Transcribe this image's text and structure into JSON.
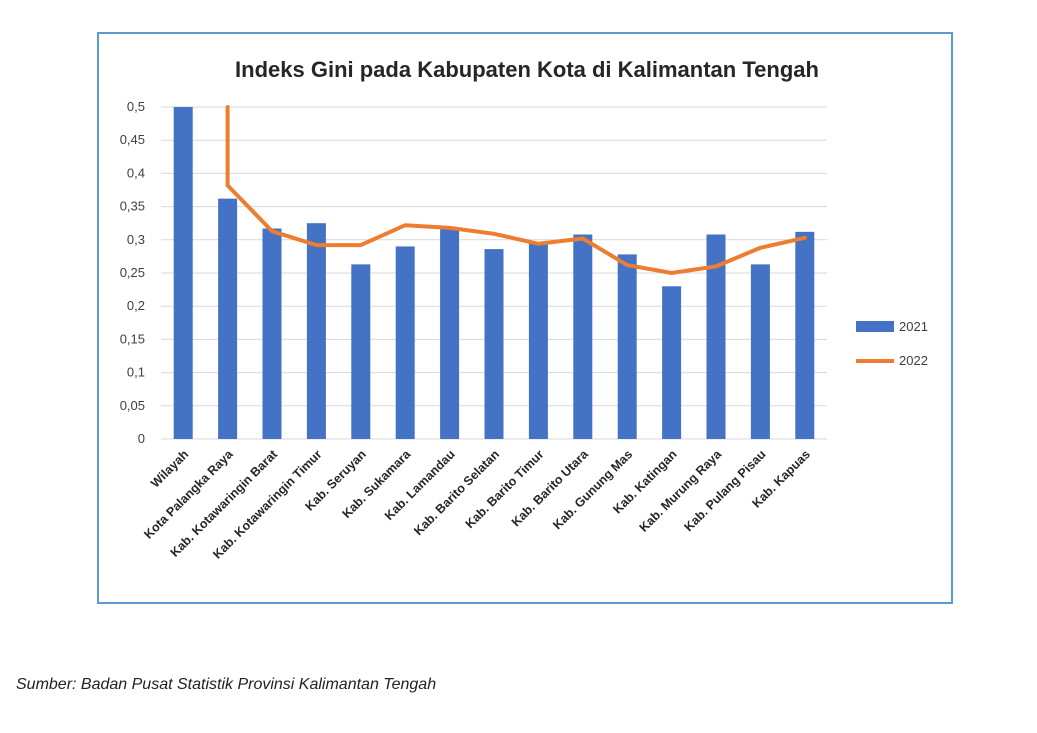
{
  "colors": {
    "frame": "#5b9bd5",
    "bar_2021": "#4472c4",
    "line_2022": "#ed7d31",
    "grid": "#d9d9d9"
  },
  "chart_data": {
    "type": "bar",
    "title": "Indeks Gini pada Kabupaten Kota di Kalimantan Tengah",
    "categories": [
      "Wilayah",
      "Kota Palangka Raya",
      "Kab. Kotawaringin Barat",
      "Kab. Kotawaringin Timur",
      "Kab. Seruyan",
      "Kab. Sukamara",
      "Kab. Lamandau",
      "Kab. Barito Selatan",
      "Kab. Barito Timur",
      "Kab. Barito Utara",
      "Kab. Gunung Mas",
      "Kab. Katingan",
      "Kab. Murung Raya",
      "Kab. Pulang Pisau",
      "Kab. Kapuas"
    ],
    "series": [
      {
        "name": "2021",
        "kind": "bar",
        "values": [
          0.5,
          0.362,
          0.317,
          0.325,
          0.263,
          0.29,
          0.316,
          0.286,
          0.296,
          0.308,
          0.278,
          0.23,
          0.308,
          0.263,
          0.312
        ]
      },
      {
        "name": "2022",
        "kind": "line",
        "values": [
          0.5,
          0.382,
          0.313,
          0.292,
          0.292,
          0.322,
          0.318,
          0.309,
          0.294,
          0.302,
          0.262,
          0.25,
          0.26,
          0.288,
          0.303
        ]
      }
    ],
    "yticks": [
      "0",
      "0,05",
      "0,1",
      "0,15",
      "0,2",
      "0,25",
      "0,3",
      "0,35",
      "0,4",
      "0,45",
      "0,5"
    ],
    "ylim": [
      0,
      0.5
    ],
    "grid": true,
    "legend_position": "right"
  },
  "source_note": "Sumber: Badan Pusat Statistik Provinsi Kalimantan Tengah"
}
